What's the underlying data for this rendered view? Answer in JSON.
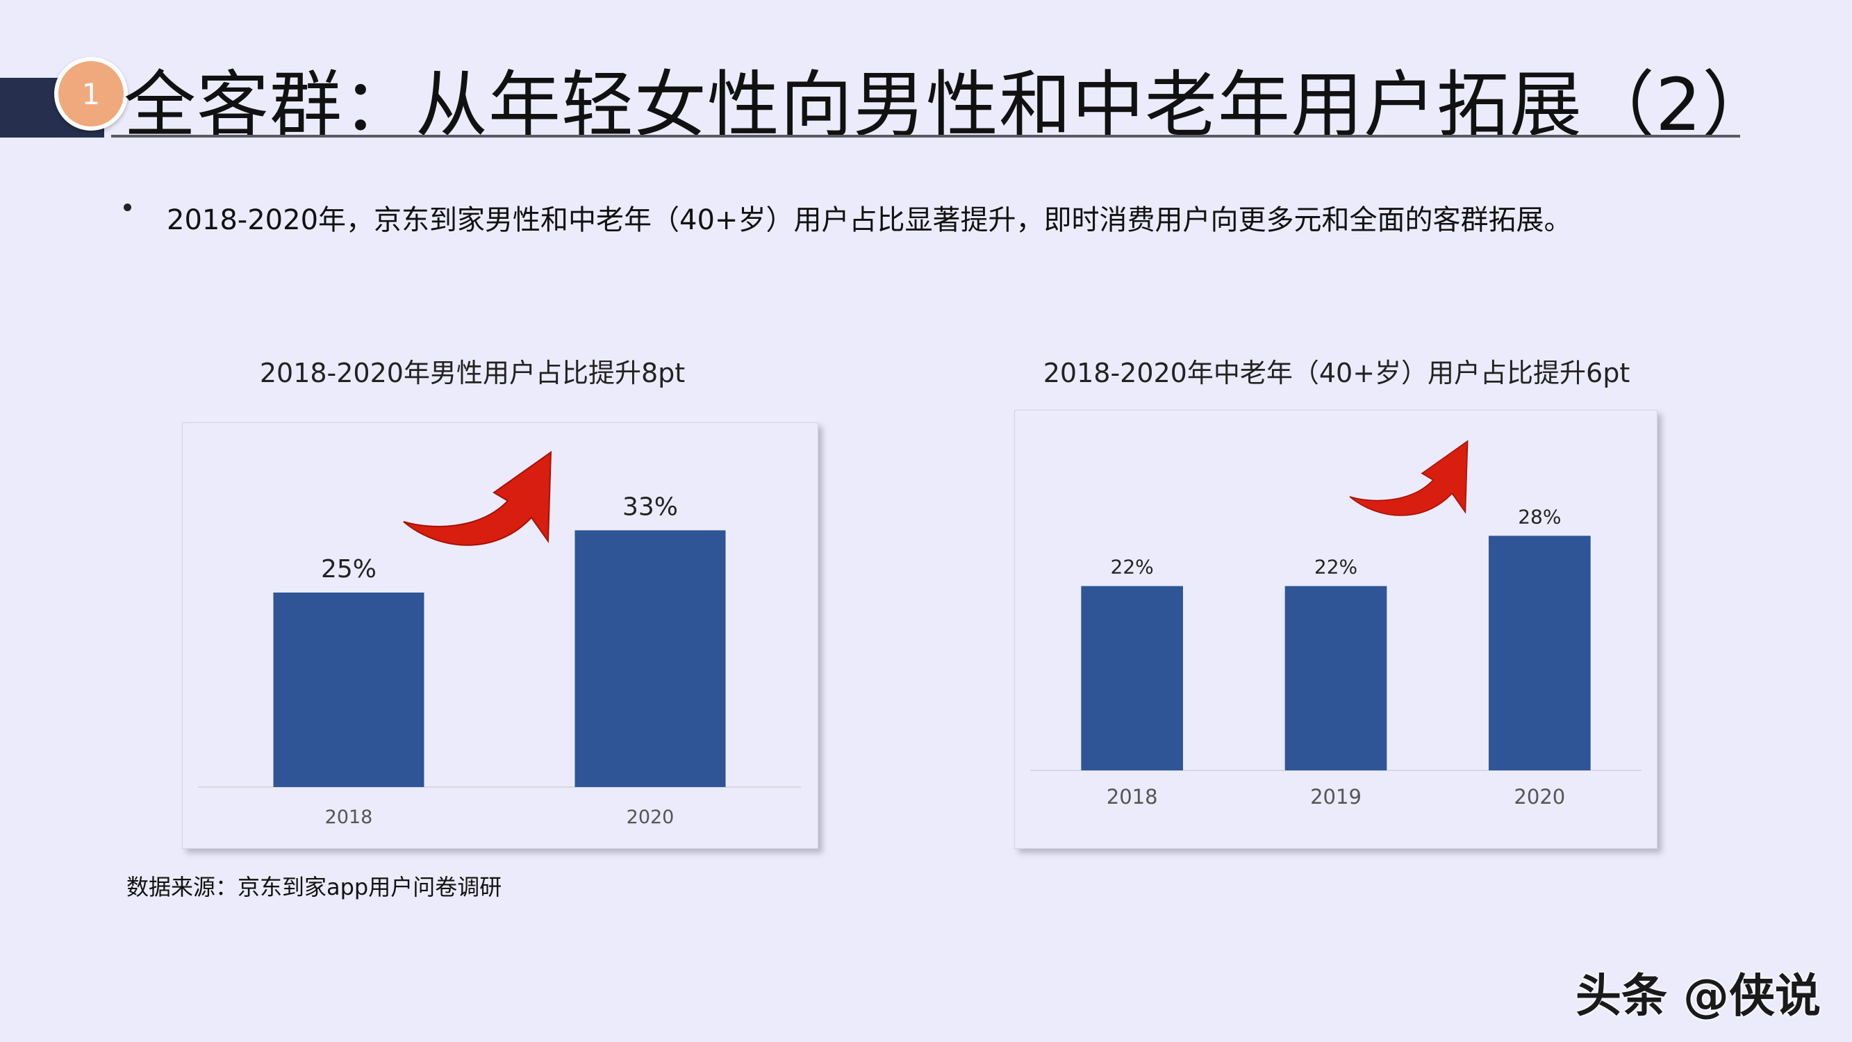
{
  "header": {
    "badge_number": "1",
    "title": "全客群：从年轻女性向男性和中老年用户拓展（2）"
  },
  "bullet": {
    "text": "2018-2020年，京东到家男性和中老年（40+岁）用户占比显著提升，即时消费用户向更多元和全面的客群拓展。"
  },
  "source": "数据来源：京东到家app用户问卷调研",
  "watermark": "头条 @侠说",
  "colors": {
    "background": "#ECEBFB",
    "bar": "#2F5597",
    "arrow": "#D81E0F",
    "title_bar": "#26304E",
    "badge": "#F0A97D"
  },
  "chart_data": [
    {
      "type": "bar",
      "title": "2018-2020年男性用户占比提升8pt",
      "categories": [
        "2018",
        "2020"
      ],
      "values": [
        25,
        33
      ],
      "value_labels": [
        "25%",
        "33%"
      ],
      "ylim": [
        0,
        40
      ],
      "grid": false,
      "legend": "none",
      "annotation": "red-curved-up-arrow"
    },
    {
      "type": "bar",
      "title": "2018-2020年中老年（40+岁）用户占比提升6pt",
      "categories": [
        "2018",
        "2019",
        "2020"
      ],
      "values": [
        22,
        22,
        28
      ],
      "value_labels": [
        "22%",
        "22%",
        "28%"
      ],
      "ylim": [
        0,
        33
      ],
      "grid": false,
      "legend": "none",
      "annotation": "red-curved-up-arrow"
    }
  ]
}
